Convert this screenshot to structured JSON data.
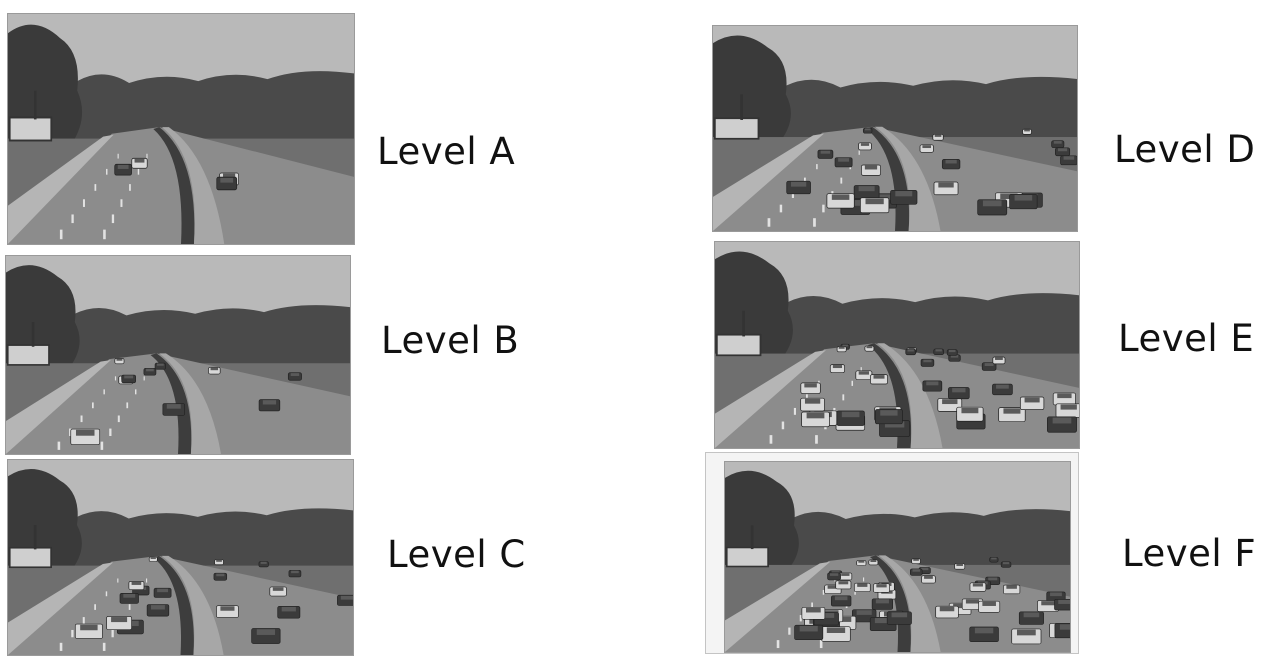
{
  "panels": [
    {
      "label": "Level A",
      "cars": 4
    },
    {
      "label": "Level B",
      "cars": 10
    },
    {
      "label": "Level C",
      "cars": 18
    },
    {
      "label": "Level D",
      "cars": 24
    },
    {
      "label": "Level E",
      "cars": 34
    },
    {
      "label": "Level F",
      "cars": 48
    }
  ],
  "colors": {
    "background": "#ffffff",
    "text": "#111111",
    "sky": "#b9b9b9",
    "trees": "#3a3a3a",
    "road": "#8c8c8c"
  }
}
